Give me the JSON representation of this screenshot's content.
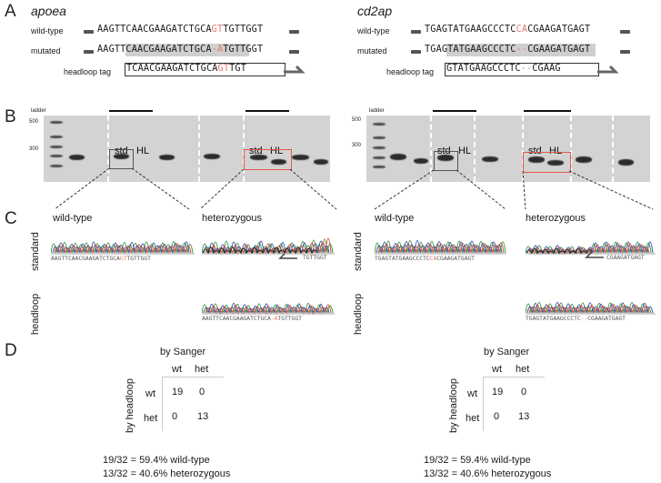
{
  "panels": {
    "a": "A",
    "b": "B",
    "c": "C",
    "d": "D"
  },
  "left": {
    "gene": "apoea",
    "rows": {
      "wildtype": "wild-type",
      "mutated": "mutated",
      "tag": "headloop tag"
    },
    "seq_wt": {
      "pre": "AAGTTCAACGAAGATCTGCA",
      "hl": "GT",
      "post": "TGTTGGT"
    },
    "seq_mut": {
      "pre": "AAGTTCAACGAAGATCTGCA",
      "hl": "-A",
      "post": "TGTTGGT"
    },
    "seq_tag": {
      "pre": "TCAACGAAGATCTGCA",
      "hl": "GT",
      "post": "TGT"
    },
    "gel": {
      "bp500": "500",
      "bp300": "300",
      "ladder": "ladder",
      "std": "std",
      "hl": "HL"
    },
    "c": {
      "wt_title": "wild-type",
      "het_title": "heterozygous",
      "standard": "standard",
      "headloop": "headloop",
      "wt_seq": {
        "pre": "AAGTTCAACGAAGATCTGCA",
        "hl": "GT",
        "post": "TGTTGGT"
      },
      "het_seq": "TGTTGGT",
      "hl_seq": {
        "pre": "AAGTTCAACGAAGATCTGCA",
        "hl": "-A",
        "post": "TGTTGGT"
      }
    },
    "d": {
      "by_sanger": "by Sanger",
      "by_headloop": "by headloop",
      "col_wt": "wt",
      "col_het": "het",
      "row_wt": "wt",
      "row_het": "het",
      "v11": "19",
      "v12": "0",
      "v21": "0",
      "v22": "13",
      "stat1": "19/32 = 59.4% wild-type",
      "stat2": "13/32 = 40.6% heterozygous"
    }
  },
  "right": {
    "gene": "cd2ap",
    "rows": {
      "wildtype": "wild-type",
      "mutated": "mutated",
      "tag": "headloop tag"
    },
    "seq_wt": {
      "pre": "TGAGTATGAAGCCCTC",
      "hl": "CA",
      "post": "CGAAGATGAGT"
    },
    "seq_mut": {
      "pre": "TGAGTATGAAGCCCTC",
      "hl": "--",
      "post": "CGAAGATGAGT"
    },
    "seq_tag": {
      "pre": "GTATGAAGCCCTC",
      "hl": "--",
      "post": "CGAAG"
    },
    "gel": {
      "bp500": "500",
      "bp300": "300",
      "ladder": "ladder",
      "std": "std",
      "hl": "HL"
    },
    "c": {
      "wt_title": "wild-type",
      "het_title": "heterozygous",
      "standard": "standard",
      "headloop": "headloop",
      "wt_seq": {
        "pre": "TGAGTATGAAGCCCTC",
        "hl": "CA",
        "post": "CGAAGATGAGT"
      },
      "het_seq": "CGAAGATGAGT",
      "hl_seq": {
        "pre": "TGAGTATGAAGCCCTC",
        "hl": "--",
        "post": "CGAAGATGAGT"
      }
    },
    "d": {
      "by_sanger": "by Sanger",
      "by_headloop": "by headloop",
      "col_wt": "wt",
      "col_het": "het",
      "row_wt": "wt",
      "row_het": "het",
      "v11": "19",
      "v12": "0",
      "v21": "0",
      "v22": "13",
      "stat1": "19/32 = 59.4% wild-type",
      "stat2": "13/32 = 40.6% heterozygous"
    }
  },
  "colors": {
    "highlight": "#e8786a",
    "red_box": "#e05a4a",
    "trace_green": "#3a9a3a",
    "trace_blue": "#3a4fb0",
    "trace_red": "#d84a3a",
    "trace_black": "#222222"
  }
}
